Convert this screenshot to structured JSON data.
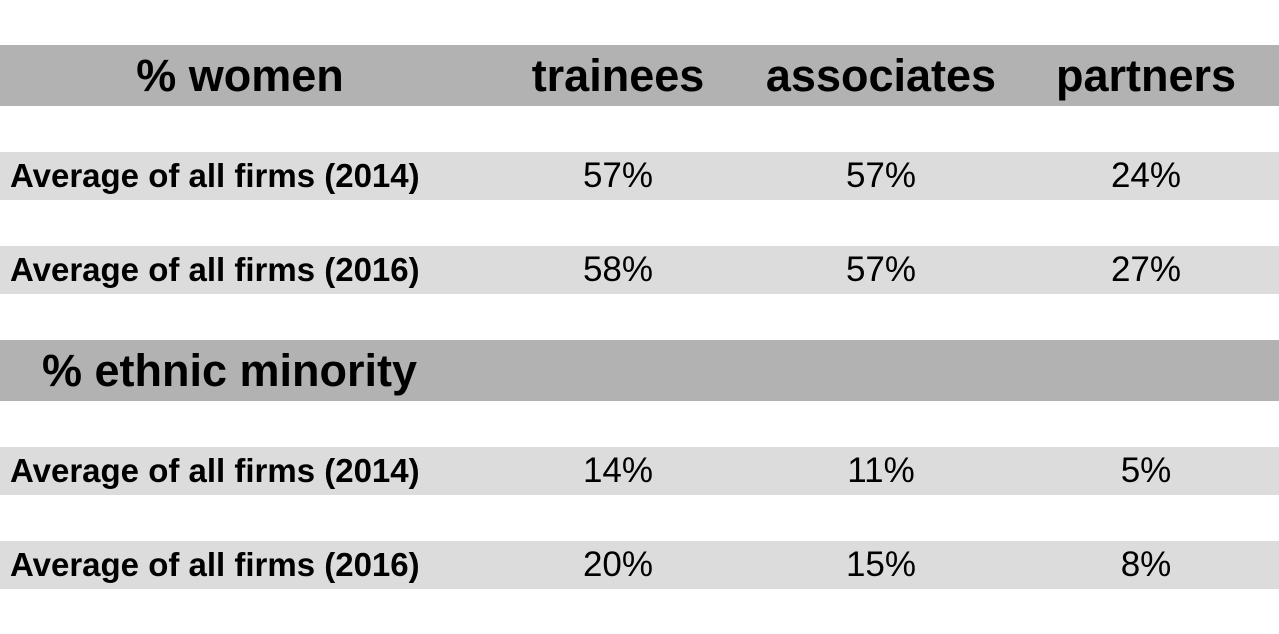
{
  "chart_data": {
    "type": "table",
    "columns": [
      "trainees",
      "associates",
      "partners"
    ],
    "sections": [
      {
        "title": "% women",
        "rows": [
          {
            "label": "Average of all firms (2014)",
            "values": [
              "57%",
              "57%",
              "24%"
            ]
          },
          {
            "label": "Average of all firms (2016)",
            "values": [
              "58%",
              "57%",
              "27%"
            ]
          }
        ]
      },
      {
        "title": "% ethnic minority",
        "rows": [
          {
            "label": "Average of all firms (2014)",
            "values": [
              "14%",
              "11%",
              "5%"
            ]
          },
          {
            "label": "Average of all firms (2016)",
            "values": [
              "20%",
              "15%",
              "8%"
            ]
          }
        ]
      }
    ],
    "colors": {
      "header_band": "#b2b2b2",
      "row_band": "#dcdcdc",
      "background": "#ffffff",
      "text": "#000000"
    }
  }
}
